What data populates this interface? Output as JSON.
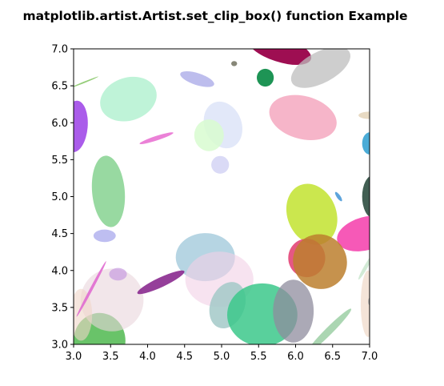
{
  "chart_data": {
    "type": "scatter",
    "title": "matplotlib.artist.Artist.set_clip_box() function Example",
    "xlabel": "",
    "ylabel": "",
    "xlim": [
      3.0,
      7.0
    ],
    "ylim": [
      3.0,
      7.0
    ],
    "grid": false,
    "legend": "none",
    "xticks": [
      "3.0",
      "3.5",
      "4.0",
      "4.5",
      "5.0",
      "5.5",
      "6.0",
      "6.5",
      "7.0"
    ],
    "yticks": [
      "3.0",
      "3.5",
      "4.0",
      "4.5",
      "5.0",
      "5.5",
      "6.0",
      "6.5",
      "7.0"
    ],
    "ellipses": [
      {
        "x": 3.35,
        "y": 3.05,
        "w": 0.7,
        "h": 0.75,
        "angle": 0,
        "color": "#4fb84f",
        "alpha": 0.85
      },
      {
        "x": 3.52,
        "y": 3.6,
        "w": 0.85,
        "h": 0.85,
        "angle": 0,
        "color": "#ead6dc",
        "alpha": 0.6
      },
      {
        "x": 3.1,
        "y": 3.4,
        "w": 0.3,
        "h": 0.7,
        "angle": 0,
        "color": "#f0d6c8",
        "alpha": 0.6
      },
      {
        "x": 3.24,
        "y": 3.75,
        "w": 0.85,
        "h": 0.04,
        "angle": 62,
        "color": "#e06bd0",
        "alpha": 0.9
      },
      {
        "x": 3.6,
        "y": 3.95,
        "w": 0.24,
        "h": 0.17,
        "angle": 0,
        "color": "#c89be0",
        "alpha": 0.7
      },
      {
        "x": 3.42,
        "y": 4.47,
        "w": 0.3,
        "h": 0.17,
        "angle": 0,
        "color": "#b3b3ee",
        "alpha": 0.85
      },
      {
        "x": 3.47,
        "y": 5.07,
        "w": 0.44,
        "h": 0.97,
        "angle": 5,
        "color": "#7ed08a",
        "alpha": 0.8
      },
      {
        "x": 3.02,
        "y": 5.95,
        "w": 0.34,
        "h": 0.7,
        "angle": -5,
        "color": "#9b3fe6",
        "alpha": 0.85
      },
      {
        "x": 3.15,
        "y": 6.55,
        "w": 0.4,
        "h": 0.02,
        "angle": 22,
        "color": "#8ac86a",
        "alpha": 0.9
      },
      {
        "x": 3.74,
        "y": 6.32,
        "w": 0.78,
        "h": 0.58,
        "angle": 18,
        "color": "#a9efcb",
        "alpha": 0.75
      },
      {
        "x": 4.12,
        "y": 5.79,
        "w": 0.48,
        "h": 0.06,
        "angle": 18,
        "color": "#e76bd0",
        "alpha": 0.85
      },
      {
        "x": 4.67,
        "y": 6.59,
        "w": 0.48,
        "h": 0.16,
        "angle": -18,
        "color": "#b1b1ea",
        "alpha": 0.85
      },
      {
        "x": 5.17,
        "y": 6.8,
        "w": 0.08,
        "h": 0.07,
        "angle": 0,
        "color": "#878778",
        "alpha": 1
      },
      {
        "x": 5.59,
        "y": 6.61,
        "w": 0.23,
        "h": 0.24,
        "angle": 0,
        "color": "#1e9455",
        "alpha": 1
      },
      {
        "x": 5.78,
        "y": 7.0,
        "w": 0.9,
        "h": 0.35,
        "angle": -18,
        "color": "#9e0e52",
        "alpha": 1
      },
      {
        "x": 6.34,
        "y": 6.75,
        "w": 0.88,
        "h": 0.42,
        "angle": 28,
        "color": "#bdbdbd",
        "alpha": 0.75
      },
      {
        "x": 5.02,
        "y": 5.97,
        "w": 0.5,
        "h": 0.65,
        "angle": 22,
        "color": "#dde4f8",
        "alpha": 0.85
      },
      {
        "x": 4.83,
        "y": 5.83,
        "w": 0.4,
        "h": 0.43,
        "angle": 0,
        "color": "#d8fbd0",
        "alpha": 0.85
      },
      {
        "x": 4.98,
        "y": 5.43,
        "w": 0.24,
        "h": 0.24,
        "angle": 0,
        "color": "#d6d6f5",
        "alpha": 0.9
      },
      {
        "x": 6.1,
        "y": 6.07,
        "w": 0.93,
        "h": 0.58,
        "angle": -15,
        "color": "#f4a3bc",
        "alpha": 0.8
      },
      {
        "x": 7.0,
        "y": 6.1,
        "w": 0.3,
        "h": 0.1,
        "angle": 0,
        "color": "#e6d6bd",
        "alpha": 0.9
      },
      {
        "x": 7.0,
        "y": 5.72,
        "w": 0.2,
        "h": 0.3,
        "angle": 0,
        "color": "#37a3d3",
        "alpha": 0.9
      },
      {
        "x": 6.58,
        "y": 5.0,
        "w": 0.05,
        "h": 0.15,
        "angle": 35,
        "color": "#4b9ad8",
        "alpha": 0.9
      },
      {
        "x": 7.05,
        "y": 5.0,
        "w": 0.3,
        "h": 0.58,
        "angle": 0,
        "color": "#2e4e40",
        "alpha": 0.9
      },
      {
        "x": 6.22,
        "y": 4.76,
        "w": 0.66,
        "h": 0.85,
        "angle": 22,
        "color": "#c5e43b",
        "alpha": 0.9
      },
      {
        "x": 6.95,
        "y": 4.5,
        "w": 0.8,
        "h": 0.45,
        "angle": 15,
        "color": "#f43caa",
        "alpha": 0.85
      },
      {
        "x": 6.15,
        "y": 4.17,
        "w": 0.5,
        "h": 0.52,
        "angle": 0,
        "color": "#e2396e",
        "alpha": 0.85
      },
      {
        "x": 6.33,
        "y": 4.12,
        "w": 0.72,
        "h": 0.75,
        "angle": 35,
        "color": "#bc7f2e",
        "alpha": 0.85
      },
      {
        "x": 6.95,
        "y": 4.05,
        "w": 0.05,
        "h": 0.4,
        "angle": -30,
        "color": "#cde8d0",
        "alpha": 0.9
      },
      {
        "x": 4.78,
        "y": 4.18,
        "w": 0.8,
        "h": 0.65,
        "angle": 0,
        "color": "#a9cede",
        "alpha": 0.85
      },
      {
        "x": 4.97,
        "y": 3.88,
        "w": 0.92,
        "h": 0.75,
        "angle": 0,
        "color": "#f2d0e6",
        "alpha": 0.6
      },
      {
        "x": 4.18,
        "y": 3.84,
        "w": 0.7,
        "h": 0.13,
        "angle": 25,
        "color": "#8a2a8f",
        "alpha": 0.9
      },
      {
        "x": 5.08,
        "y": 3.53,
        "w": 0.46,
        "h": 0.65,
        "angle": -22,
        "color": "#a3c9c8",
        "alpha": 0.85
      },
      {
        "x": 5.55,
        "y": 3.4,
        "w": 0.95,
        "h": 0.85,
        "angle": 0,
        "color": "#3cc88b",
        "alpha": 0.85
      },
      {
        "x": 5.97,
        "y": 3.45,
        "w": 0.55,
        "h": 0.85,
        "angle": 0,
        "color": "#8f8c9e",
        "alpha": 0.75
      },
      {
        "x": 6.45,
        "y": 3.18,
        "w": 0.85,
        "h": 0.1,
        "angle": 45,
        "color": "#9ccfa5",
        "alpha": 0.85
      },
      {
        "x": 6.98,
        "y": 3.55,
        "w": 0.2,
        "h": 0.9,
        "angle": 0,
        "color": "#f0d8c8",
        "alpha": 0.7
      },
      {
        "x": 7.0,
        "y": 3.58,
        "w": 0.04,
        "h": 0.1,
        "angle": 0,
        "color": "#a3a3a3",
        "alpha": 0.8
      }
    ]
  }
}
